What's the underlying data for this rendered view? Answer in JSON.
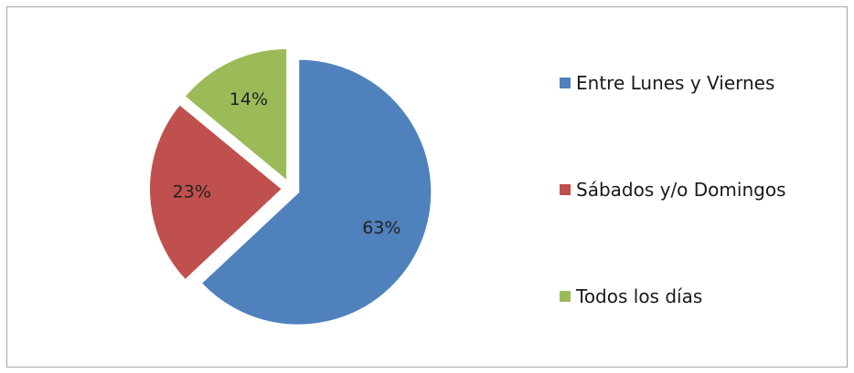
{
  "chart_data": {
    "type": "pie",
    "title": "",
    "categories": [
      "Entre Lunes y Viernes",
      "Sábados y/o Domingos",
      "Todos los días"
    ],
    "values": [
      63,
      23,
      14
    ],
    "labels": [
      "63%",
      "23%",
      "14%"
    ],
    "colors": [
      "#4f81bd",
      "#c0504d",
      "#9bbb59"
    ],
    "exploded": true,
    "legend": "right"
  }
}
